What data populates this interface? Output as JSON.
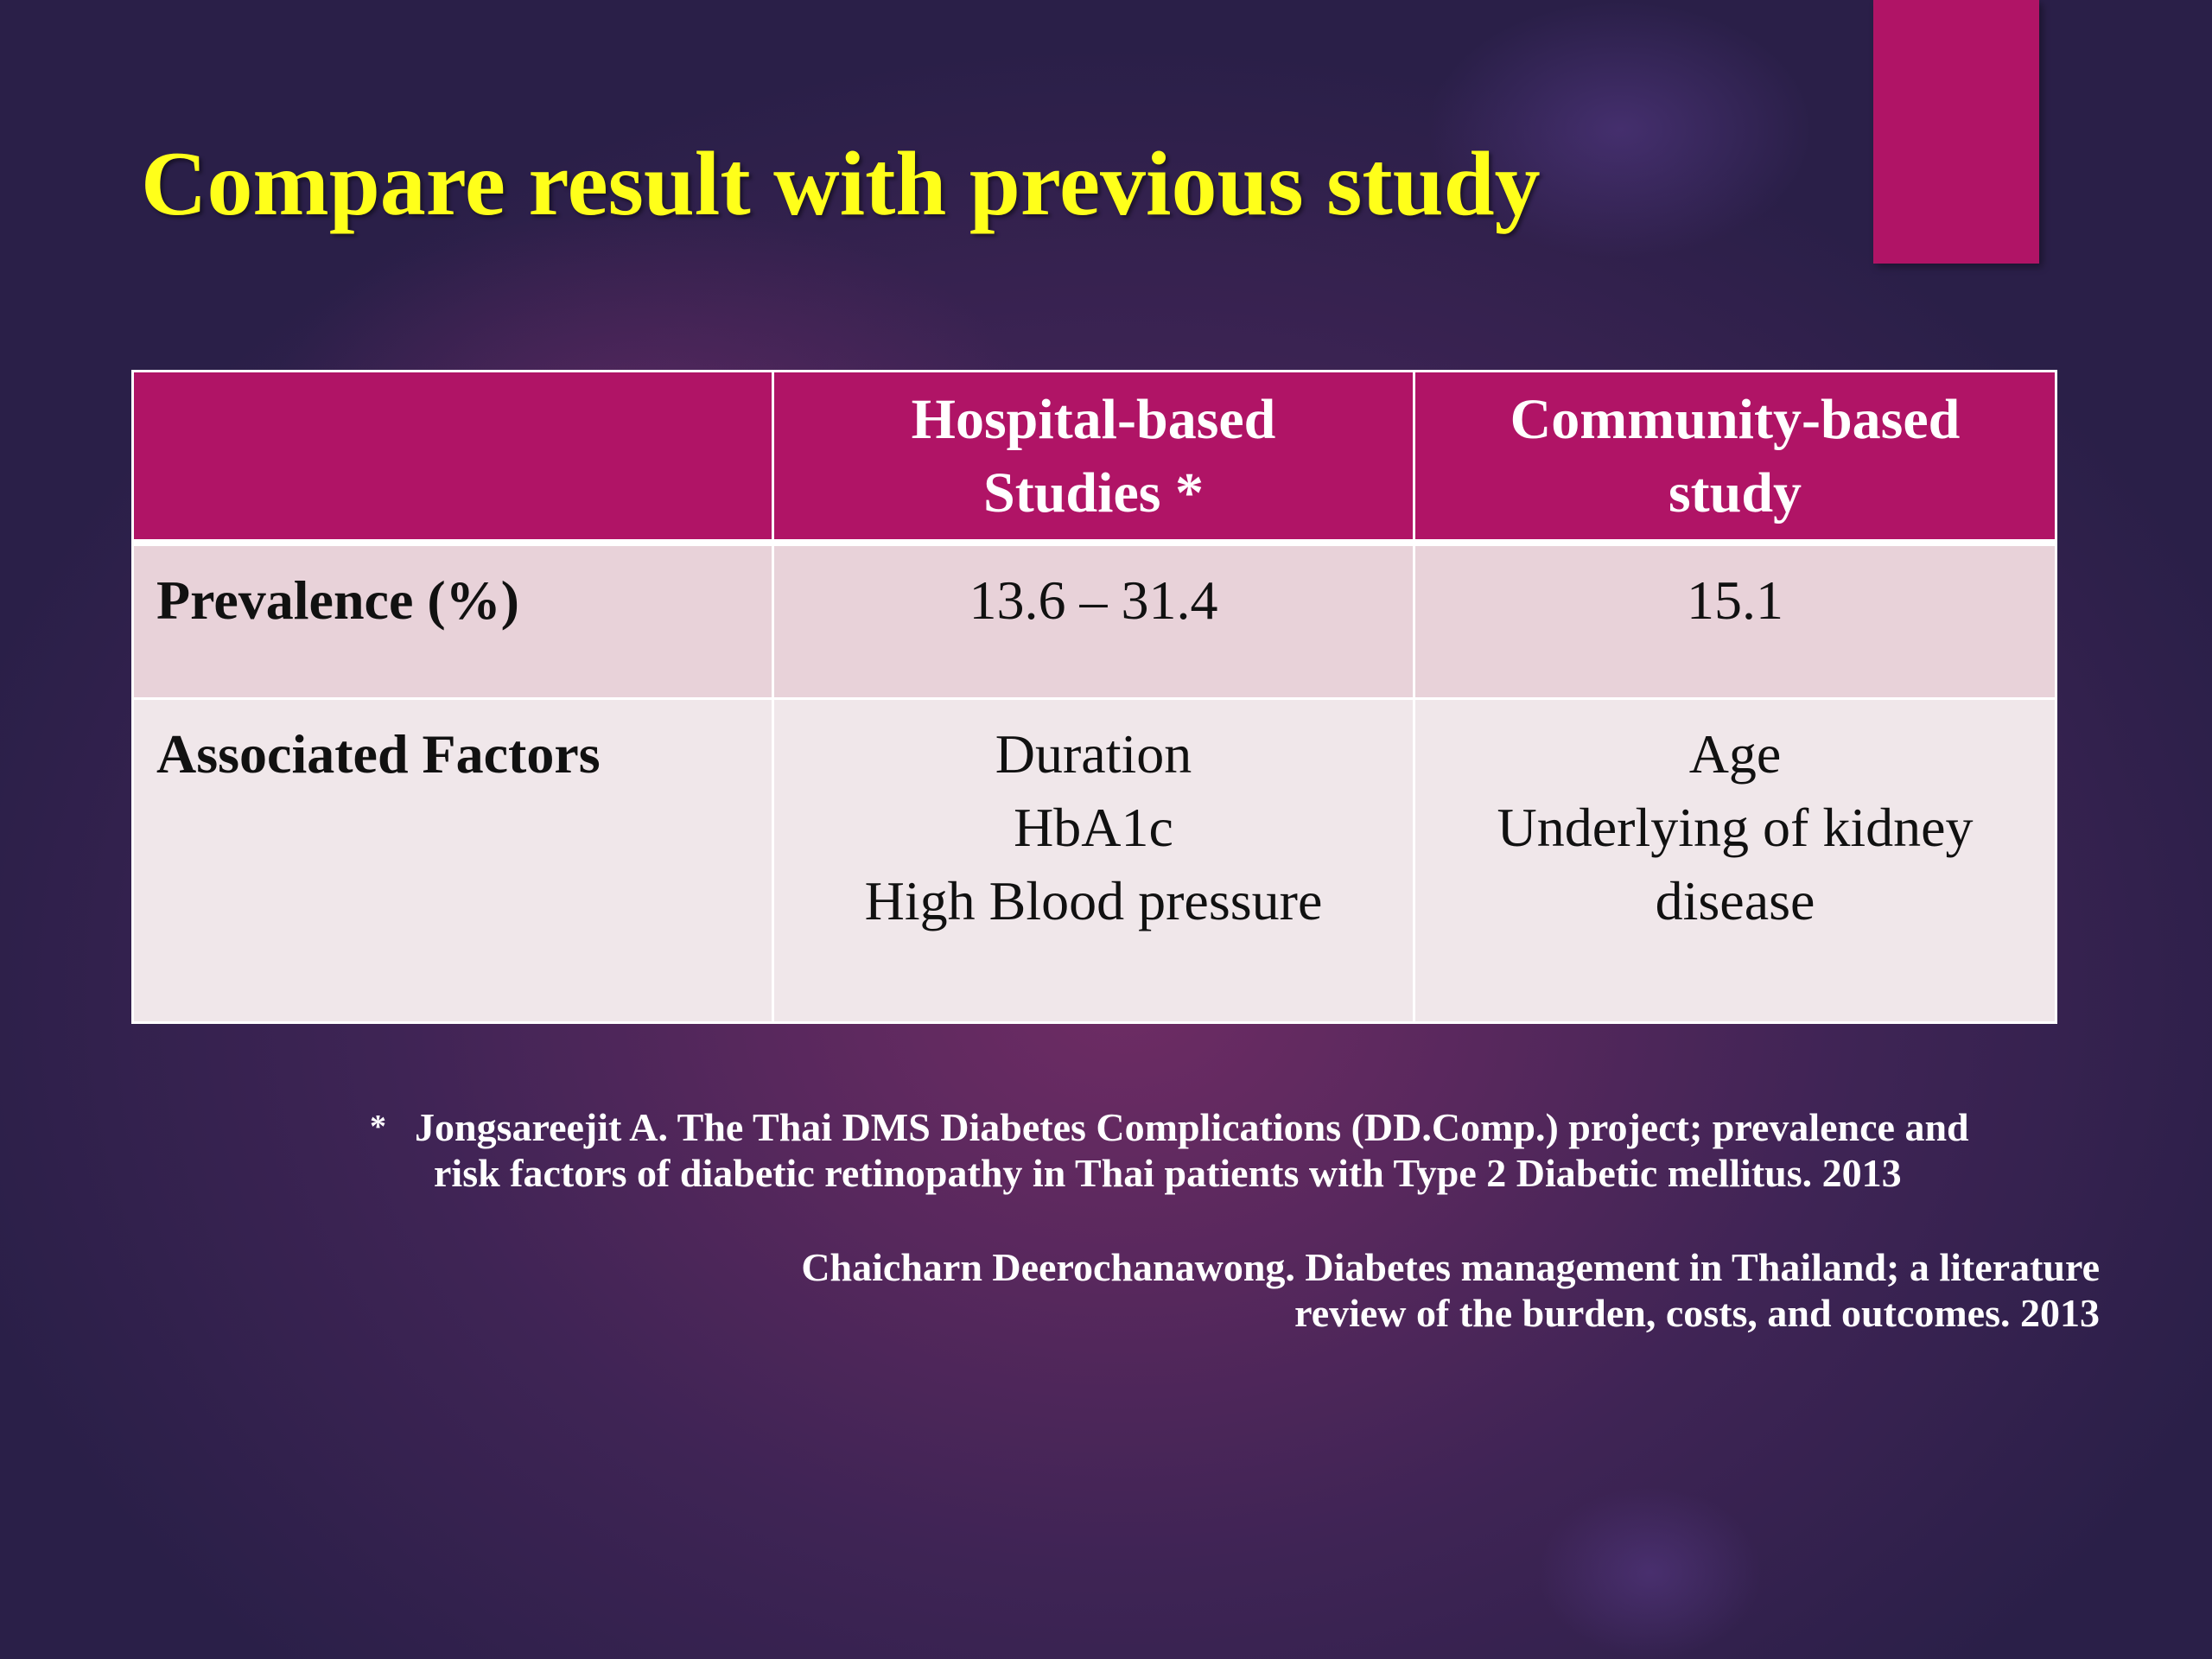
{
  "slide": {
    "title": "Compare result with previous study"
  },
  "table": {
    "headers": [
      "",
      "Hospital-based Studies *",
      "Community-based study"
    ],
    "header_lines": {
      "col2": [
        "Hospital-based",
        "Studies *"
      ],
      "col3": [
        "Community-based",
        "study"
      ]
    },
    "rows": [
      {
        "label": "Prevalence (%)",
        "hospital": [
          "13.6 – 31.4"
        ],
        "community": [
          "15.1"
        ]
      },
      {
        "label": "Associated Factors",
        "hospital": [
          "Duration",
          "HbA1c",
          "High Blood pressure"
        ],
        "community": [
          "Age",
          "Underlying of kidney",
          "disease"
        ]
      }
    ]
  },
  "references": {
    "bullet": "*",
    "ref1_lines": [
      "Jongsareejit A. The Thai DMS Diabetes Complications (DD.Comp.) project; prevalence and",
      "risk factors of diabetic retinopathy in Thai patients with Type 2 Diabetic mellitus. 2013"
    ],
    "ref2_lines": [
      "Chaicharn Deerochanawong. Diabetes management in Thailand; a literature",
      "review of the burden, costs, and outcomes. 2013"
    ]
  },
  "colors": {
    "title": "#ffff1a",
    "accent": "#b01466",
    "row_prevalence_bg": "#e8d2d9",
    "row_factors_bg": "#f0e7ea",
    "background_center": "#6e2c64",
    "background_edge": "#2a1f48"
  }
}
